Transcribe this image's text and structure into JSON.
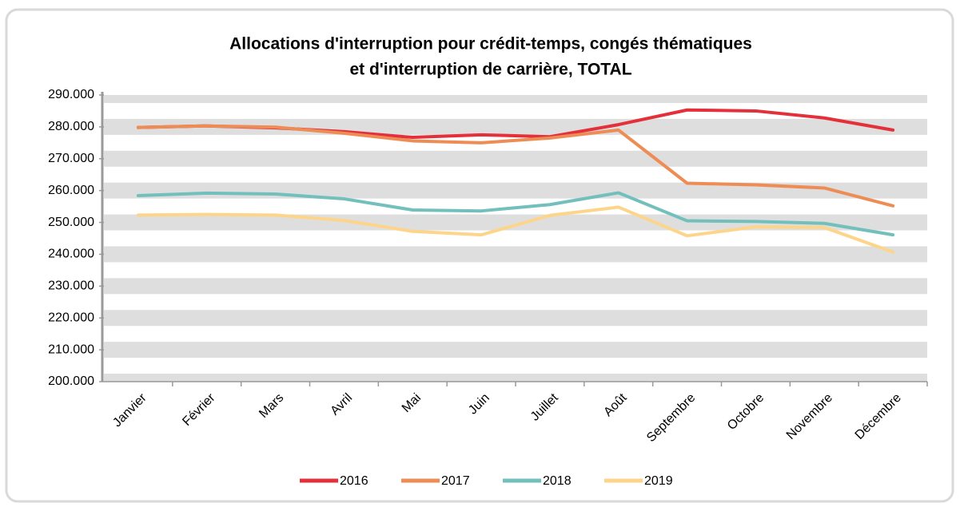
{
  "chart_data": {
    "type": "line",
    "title": [
      "Allocations d'interruption pour crédit-temps, congés thématiques",
      "et d'interruption de carrière, TOTAL"
    ],
    "categories": [
      "Janvier",
      "Février",
      "Mars",
      "Avril",
      "Mai",
      "Juin",
      "Juillet",
      "Août",
      "Septembre",
      "Octobre",
      "Novembre",
      "Décembre"
    ],
    "series": [
      {
        "name": "2016",
        "color": "#e3303a",
        "values": [
          279800,
          280300,
          279700,
          278500,
          276700,
          277500,
          276900,
          280700,
          285300,
          285000,
          282800,
          279000
        ]
      },
      {
        "name": "2017",
        "color": "#ee8c55",
        "values": [
          279800,
          280300,
          279900,
          278000,
          275600,
          275000,
          276500,
          279000,
          262300,
          261800,
          260800,
          255200
        ]
      },
      {
        "name": "2018",
        "color": "#72bfbc",
        "values": [
          258400,
          259200,
          258900,
          257400,
          253900,
          253600,
          255600,
          259300,
          250500,
          250300,
          249700,
          246100
        ]
      },
      {
        "name": "2019",
        "color": "#fdd58a",
        "values": [
          252300,
          252500,
          252300,
          250600,
          247200,
          246100,
          252200,
          254800,
          245800,
          248600,
          248400,
          240700
        ]
      }
    ],
    "ylim": [
      200000,
      290000
    ],
    "yticks": [
      {
        "value": 200000,
        "label": "200.000"
      },
      {
        "value": 210000,
        "label": "210.000"
      },
      {
        "value": 220000,
        "label": "220.000"
      },
      {
        "value": 230000,
        "label": "230.000"
      },
      {
        "value": 240000,
        "label": "240.000"
      },
      {
        "value": 250000,
        "label": "250.000"
      },
      {
        "value": 260000,
        "label": "260.000"
      },
      {
        "value": 270000,
        "label": "270.000"
      },
      {
        "value": 280000,
        "label": "280.000"
      },
      {
        "value": 290000,
        "label": "290.000"
      }
    ],
    "grid": true,
    "legend": "bottom"
  }
}
